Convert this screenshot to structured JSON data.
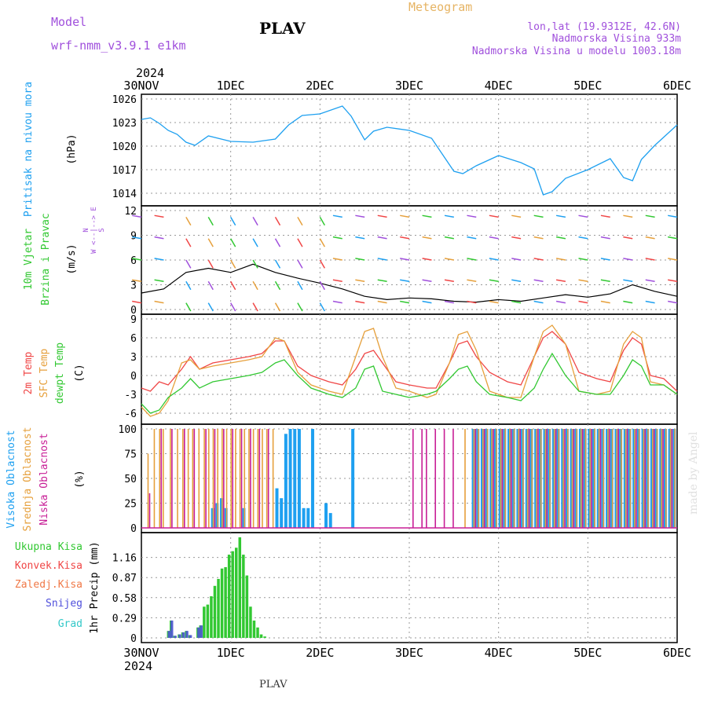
{
  "header": {
    "model_label": "Model",
    "model_value": "wrf-nmm_v3.9.1  e1km",
    "station": "PLAV",
    "meteogram_label": "Meteogram",
    "lonlat": "lon,lat (19.9312E, 42.6N)",
    "elevation": "Nadmorska Visina 933m",
    "model_elevation": "Nadmorska Visina u modelu 1003.18m",
    "footer_station": "PLAV",
    "watermark": "made by Angel"
  },
  "colors": {
    "pressure": "#1ea0f0",
    "temp2m": "#f04646",
    "sfc_temp": "#e6a03c",
    "dewpoint": "#32c832",
    "cloud_high": "#1ea0f0",
    "cloud_mid": "#e6a03c",
    "cloud_low": "#c81e96",
    "precip_total": "#32c832",
    "precip_conv": "#f04646",
    "precip_frz": "#f07846",
    "snow": "#5050dc",
    "hail": "#32c8c8",
    "wind_label": "#32c832",
    "wind_axis": "#a050dc",
    "model_text": "#a050dc",
    "meteogram_text": "#e6b464",
    "watermark": "#e0e0e0"
  },
  "time_axis": {
    "year": "2024",
    "ticks": [
      "30NOV",
      "1DEC",
      "2DEC",
      "3DEC",
      "4DEC",
      "5DEC",
      "6DEC"
    ]
  },
  "chart_data": [
    {
      "type": "line",
      "panel": "pressure",
      "ylabel_1": "Pritisak na nivou mora",
      "ylabel_2": "(hPa)",
      "yticks": [
        1014,
        1017,
        1020,
        1023,
        1026
      ],
      "ylim": [
        1013,
        1026
      ],
      "grid": true,
      "x": [
        0,
        0.1,
        0.2,
        0.3,
        0.4,
        0.5,
        0.6,
        0.75,
        1.0,
        1.25,
        1.5,
        1.65,
        1.8,
        2.0,
        2.25,
        2.35,
        2.5,
        2.6,
        2.75,
        3.0,
        3.25,
        3.5,
        3.6,
        3.75,
        4.0,
        4.25,
        4.4,
        4.5,
        4.6,
        4.75,
        5.0,
        5.25,
        5.4,
        5.5,
        5.6,
        5.75,
        6.0
      ],
      "series": [
        {
          "name": "Pritisak na nivou mora",
          "values": [
            1023.4,
            1023.6,
            1022.9,
            1022.0,
            1021.5,
            1020.5,
            1020.1,
            1021.3,
            1020.6,
            1020.5,
            1020.9,
            1022.7,
            1023.9,
            1024.1,
            1025.1,
            1023.8,
            1020.8,
            1021.9,
            1022.4,
            1022.0,
            1021.0,
            1016.8,
            1016.5,
            1017.5,
            1018.8,
            1017.9,
            1017.1,
            1013.8,
            1014.2,
            1015.9,
            1017.0,
            1018.4,
            1016.0,
            1015.6,
            1018.3,
            1020.1,
            1022.7
          ]
        }
      ]
    },
    {
      "type": "line",
      "panel": "wind",
      "ylabel_1": "10m Vjetar",
      "ylabel_2": "Brzina i Pravac",
      "ylabel_3": "(m/s)",
      "compass": "N\nW  <--|-->  E\nS",
      "yticks": [
        0,
        3,
        6,
        9,
        12
      ],
      "ylim": [
        0,
        12
      ],
      "grid": true,
      "x": [
        0,
        0.25,
        0.5,
        0.75,
        1.0,
        1.25,
        1.5,
        1.75,
        2.0,
        2.25,
        2.5,
        2.75,
        3.0,
        3.25,
        3.5,
        3.75,
        4.0,
        4.25,
        4.5,
        4.75,
        5.0,
        5.25,
        5.5,
        5.75,
        6.0
      ],
      "series": [
        {
          "name": "10m Vjetar",
          "values": [
            2.0,
            2.5,
            4.5,
            5.0,
            4.5,
            5.5,
            4.5,
            3.8,
            3.2,
            2.5,
            1.6,
            1.2,
            1.4,
            1.3,
            1.0,
            0.9,
            1.2,
            1.0,
            1.4,
            1.8,
            1.5,
            1.9,
            3.0,
            2.2,
            1.6
          ]
        }
      ]
    },
    {
      "type": "line",
      "panel": "temperature",
      "ylabel_1": "2m Temp",
      "ylabel_2": "SFC Temp",
      "ylabel_3": "dewpt Temp",
      "ylabel_4": "(C)",
      "yticks": [
        -6,
        -3,
        0,
        3,
        6,
        9
      ],
      "ylim": [
        -7,
        9
      ],
      "grid": true,
      "x": [
        0,
        0.1,
        0.2,
        0.3,
        0.45,
        0.55,
        0.65,
        0.8,
        1.0,
        1.2,
        1.35,
        1.5,
        1.6,
        1.75,
        1.9,
        2.1,
        2.25,
        2.4,
        2.5,
        2.6,
        2.7,
        2.85,
        3.0,
        3.2,
        3.3,
        3.45,
        3.55,
        3.65,
        3.75,
        3.9,
        4.1,
        4.25,
        4.4,
        4.5,
        4.6,
        4.75,
        4.9,
        5.1,
        5.25,
        5.4,
        5.5,
        5.6,
        5.7,
        5.85,
        6.0
      ],
      "series": [
        {
          "name": "2m Temp",
          "values": [
            -2.0,
            -2.5,
            -1.0,
            -1.5,
            1.0,
            3.0,
            1.0,
            2.0,
            2.5,
            3.0,
            3.5,
            5.5,
            5.5,
            1.5,
            0.0,
            -1.0,
            -1.5,
            1.0,
            3.5,
            4.0,
            2.0,
            -1.0,
            -1.5,
            -2.0,
            -2.0,
            2.0,
            5.0,
            5.5,
            3.0,
            0.5,
            -1.0,
            -1.5,
            3.0,
            6.0,
            7.0,
            5.0,
            0.5,
            -0.5,
            -1.0,
            4.0,
            6.0,
            5.0,
            0.0,
            -0.5,
            -2.5
          ]
        },
        {
          "name": "SFC Temp",
          "values": [
            -5.0,
            -6.5,
            -6.0,
            -4.0,
            2.0,
            2.5,
            1.0,
            1.5,
            2.0,
            2.5,
            3.0,
            6.0,
            5.5,
            0.5,
            -1.5,
            -2.5,
            -3.0,
            3.0,
            7.0,
            7.5,
            3.0,
            -2.0,
            -2.5,
            -3.5,
            -3.0,
            2.0,
            6.5,
            7.0,
            4.0,
            -2.5,
            -3.5,
            -3.5,
            3.0,
            7.0,
            8.0,
            5.0,
            -2.5,
            -3.0,
            -2.5,
            5.0,
            7.0,
            6.0,
            -1.0,
            -1.5,
            -3.0
          ]
        },
        {
          "name": "dewpt Temp",
          "values": [
            -4.5,
            -6.0,
            -5.5,
            -3.5,
            -2.0,
            -0.5,
            -2.0,
            -1.0,
            -0.5,
            0.0,
            0.5,
            2.0,
            2.5,
            0.0,
            -2.0,
            -3.0,
            -3.5,
            -2.0,
            1.0,
            1.5,
            -2.5,
            -3.0,
            -3.5,
            -3.0,
            -2.5,
            -0.5,
            1.0,
            1.5,
            -1.0,
            -3.0,
            -3.5,
            -4.0,
            -2.0,
            1.0,
            3.5,
            0.0,
            -2.5,
            -3.0,
            -3.0,
            0.0,
            2.5,
            1.5,
            -1.5,
            -1.5,
            -3.0
          ]
        }
      ]
    },
    {
      "type": "bar",
      "panel": "clouds",
      "ylabel_1": "Visoka Oblacnost",
      "ylabel_2": "Srednja Oblacnost",
      "ylabel_3": "Niska Oblacnost",
      "ylabel_4": "(%)",
      "yticks": [
        0,
        25,
        50,
        75,
        100
      ],
      "ylim": [
        0,
        100
      ],
      "grid": true,
      "x": [
        0.05,
        0.12,
        0.18,
        0.22,
        0.3,
        0.38,
        0.44,
        0.5,
        0.55,
        0.62,
        0.68,
        0.73,
        0.78,
        0.83,
        0.88,
        0.93,
        0.98,
        1.03,
        1.08,
        1.13,
        1.18,
        1.23,
        1.28,
        1.33,
        1.38,
        1.45,
        1.5,
        1.55,
        1.6,
        1.65,
        1.7,
        1.75,
        1.8,
        1.85,
        1.9,
        2.05,
        2.1,
        2.35,
        3.0,
        3.1,
        3.15,
        3.25,
        3.35,
        3.45,
        3.6,
        3.7,
        3.75,
        3.8,
        3.85,
        3.9,
        3.95,
        4.0,
        4.05,
        4.1,
        4.15,
        4.2,
        4.25,
        4.3,
        4.35,
        4.4,
        4.45,
        4.5,
        4.55,
        4.6,
        4.65,
        4.7,
        4.75,
        4.8,
        4.85,
        4.9,
        4.95,
        5.0,
        5.05,
        5.1,
        5.15,
        5.2,
        5.25,
        5.3,
        5.35,
        5.4,
        5.45,
        5.5,
        5.55,
        5.6,
        5.65,
        5.7,
        5.75,
        5.8,
        5.85,
        5.9,
        5.95
      ],
      "series": [
        {
          "name": "Visoka Oblacnost",
          "values": [
            0,
            0,
            0,
            0,
            0,
            0,
            0,
            0,
            0,
            0,
            0,
            0,
            20,
            25,
            30,
            20,
            0,
            0,
            0,
            20,
            0,
            0,
            0,
            0,
            0,
            0,
            40,
            30,
            95,
            100,
            100,
            100,
            20,
            20,
            100,
            25,
            15,
            100,
            0,
            0,
            0,
            0,
            0,
            0,
            0,
            100,
            100,
            100,
            100,
            100,
            100,
            100,
            100,
            100,
            100,
            100,
            100,
            100,
            100,
            100,
            100,
            100,
            100,
            100,
            100,
            100,
            100,
            100,
            100,
            100,
            100,
            100,
            100,
            100,
            100,
            100,
            100,
            100,
            100,
            100,
            100,
            100,
            100,
            100,
            100,
            100,
            100,
            100,
            100,
            100,
            100
          ]
        },
        {
          "name": "Srednja Oblacnost",
          "values": [
            75,
            100,
            100,
            100,
            100,
            100,
            100,
            100,
            100,
            100,
            100,
            100,
            100,
            100,
            100,
            100,
            100,
            100,
            100,
            100,
            100,
            100,
            100,
            100,
            100,
            100,
            0,
            0,
            0,
            0,
            0,
            0,
            0,
            0,
            0,
            0,
            0,
            0,
            0,
            0,
            0,
            0,
            0,
            0,
            100,
            100,
            100,
            100,
            100,
            100,
            100,
            100,
            100,
            100,
            100,
            100,
            100,
            100,
            100,
            100,
            100,
            100,
            100,
            100,
            100,
            100,
            100,
            100,
            100,
            100,
            100,
            100,
            100,
            100,
            100,
            100,
            100,
            100,
            100,
            100,
            100,
            100,
            100,
            100,
            100,
            100,
            100,
            100,
            100,
            100,
            100
          ]
        },
        {
          "name": "Niska Oblacnost",
          "values": [
            35,
            0,
            100,
            0,
            100,
            0,
            100,
            0,
            100,
            0,
            100,
            0,
            100,
            0,
            100,
            0,
            100,
            0,
            100,
            0,
            100,
            0,
            100,
            0,
            100,
            0,
            0,
            0,
            0,
            0,
            0,
            0,
            0,
            0,
            0,
            0,
            0,
            0,
            100,
            100,
            100,
            100,
            100,
            100,
            0,
            100,
            0,
            100,
            0,
            100,
            0,
            100,
            0,
            100,
            0,
            100,
            0,
            100,
            0,
            100,
            0,
            100,
            0,
            100,
            0,
            100,
            0,
            100,
            0,
            100,
            0,
            100,
            0,
            100,
            0,
            100,
            0,
            100,
            0,
            100,
            0,
            100,
            0,
            100,
            0,
            100,
            0,
            100,
            0,
            100,
            0
          ]
        }
      ]
    },
    {
      "type": "bar",
      "panel": "precipitation",
      "ylabel_1": "1hr Precip (mm)",
      "legend": [
        "Ukupna Kisa",
        "Konvek.Kisa",
        "Zaledj.Kisa",
        "Snijeg",
        "Grad"
      ],
      "yticks": [
        0,
        0.29,
        0.58,
        0.87,
        1.16
      ],
      "ylim": [
        0,
        1.45
      ],
      "grid": true,
      "x": [
        0.3,
        0.33,
        0.37,
        0.42,
        0.46,
        0.5,
        0.54,
        0.63,
        0.66,
        0.7,
        0.74,
        0.78,
        0.82,
        0.86,
        0.9,
        0.94,
        0.98,
        1.02,
        1.06,
        1.1,
        1.14,
        1.18,
        1.22,
        1.26,
        1.3,
        1.34,
        1.38
      ],
      "series": [
        {
          "name": "Ukupna Kisa",
          "values": [
            0.1,
            0.25,
            0.03,
            0.05,
            0.08,
            0.1,
            0.04,
            0.15,
            0.18,
            0.45,
            0.48,
            0.6,
            0.75,
            0.85,
            1.0,
            1.02,
            1.2,
            1.25,
            1.3,
            1.45,
            1.2,
            0.9,
            0.45,
            0.25,
            0.15,
            0.05,
            0.02
          ]
        },
        {
          "name": "Snijeg",
          "values": [
            0.1,
            0.25,
            0.03,
            0.05,
            0.08,
            0.1,
            0.04,
            0.15,
            0.18,
            0,
            0,
            0,
            0,
            0,
            0,
            0,
            0,
            0,
            0,
            0,
            0,
            0,
            0,
            0,
            0,
            0,
            0
          ]
        }
      ]
    }
  ]
}
